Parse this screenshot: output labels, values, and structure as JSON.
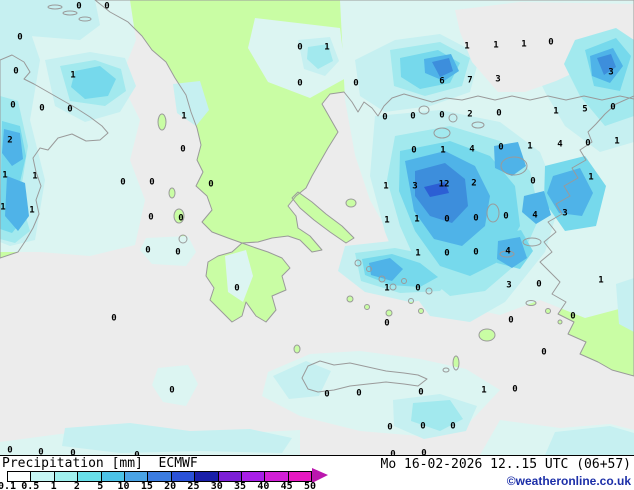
{
  "legend": {
    "title": "Precipitation",
    "unit": "[mm]",
    "model": "ECMWF",
    "ticks": [
      "0.1",
      "0.5",
      "1",
      "2",
      "5",
      "10",
      "15",
      "20",
      "25",
      "30",
      "35",
      "40",
      "45",
      "50"
    ],
    "colors": [
      "#fcfffe",
      "#c6f6f4",
      "#9ff0ee",
      "#68dfe9",
      "#4cc3e7",
      "#4aa3e5",
      "#3b7ce1",
      "#2b52d8",
      "#1a1fa9",
      "#7c1fd6",
      "#a81fe8",
      "#d21fd6",
      "#e619c2"
    ],
    "arrow_color": "#bb17ae"
  },
  "footer": {
    "datetime": "Mo 16-02-2026 12..15 UTC (06+57)",
    "copyright": "©weatheronline.co.uk"
  },
  "map": {
    "colors": {
      "sea": "#ececec",
      "land": "#c9fda4",
      "coast": "#9a9a9a",
      "copy": "#1c2fa8",
      "arrow": "#bb17ae",
      "b0": "#dcf5f2",
      "b1": "#c6f0f1",
      "b2": "#a2e9ee",
      "b3": "#76d9ec",
      "b4": "#4fb3e8",
      "b5": "#3d8edc",
      "b6": "#2c5fd4"
    },
    "values": [
      [
        79,
        5,
        "0"
      ],
      [
        107,
        5,
        "0"
      ],
      [
        20,
        36,
        "0"
      ],
      [
        300,
        46,
        "0"
      ],
      [
        327,
        46,
        "1"
      ],
      [
        467,
        45,
        "1"
      ],
      [
        496,
        44,
        "1"
      ],
      [
        524,
        43,
        "1"
      ],
      [
        551,
        41,
        "0"
      ],
      [
        16,
        70,
        "0"
      ],
      [
        73,
        74,
        "1"
      ],
      [
        300,
        82,
        "0"
      ],
      [
        356,
        82,
        "0"
      ],
      [
        442,
        80,
        "6"
      ],
      [
        470,
        79,
        "7"
      ],
      [
        498,
        78,
        "3"
      ],
      [
        611,
        71,
        "3"
      ],
      [
        13,
        104,
        "0"
      ],
      [
        42,
        107,
        "0"
      ],
      [
        70,
        108,
        "0"
      ],
      [
        184,
        115,
        "1"
      ],
      [
        385,
        116,
        "0"
      ],
      [
        413,
        115,
        "0"
      ],
      [
        442,
        114,
        "0"
      ],
      [
        470,
        113,
        "2"
      ],
      [
        499,
        112,
        "0"
      ],
      [
        556,
        110,
        "1"
      ],
      [
        585,
        108,
        "5"
      ],
      [
        613,
        106,
        "0"
      ],
      [
        10,
        139,
        "2"
      ],
      [
        183,
        148,
        "0"
      ],
      [
        414,
        149,
        "0"
      ],
      [
        443,
        149,
        "1"
      ],
      [
        472,
        148,
        "4"
      ],
      [
        501,
        146,
        "0"
      ],
      [
        530,
        145,
        "1"
      ],
      [
        560,
        143,
        "4"
      ],
      [
        588,
        142,
        "0"
      ],
      [
        617,
        140,
        "1"
      ],
      [
        5,
        174,
        "1"
      ],
      [
        35,
        175,
        "1"
      ],
      [
        123,
        181,
        "0"
      ],
      [
        152,
        181,
        "0"
      ],
      [
        211,
        183,
        "0"
      ],
      [
        386,
        185,
        "1"
      ],
      [
        415,
        185,
        "3"
      ],
      [
        444,
        183,
        "12"
      ],
      [
        474,
        182,
        "2"
      ],
      [
        533,
        180,
        "0"
      ],
      [
        591,
        176,
        "1"
      ],
      [
        3,
        206,
        "1"
      ],
      [
        32,
        209,
        "1"
      ],
      [
        151,
        216,
        "0"
      ],
      [
        181,
        217,
        "0"
      ],
      [
        387,
        219,
        "1"
      ],
      [
        417,
        218,
        "1"
      ],
      [
        447,
        218,
        "0"
      ],
      [
        476,
        217,
        "0"
      ],
      [
        506,
        215,
        "0"
      ],
      [
        535,
        214,
        "4"
      ],
      [
        565,
        212,
        "3"
      ],
      [
        148,
        249,
        "0"
      ],
      [
        178,
        251,
        "0"
      ],
      [
        418,
        252,
        "1"
      ],
      [
        447,
        252,
        "0"
      ],
      [
        476,
        251,
        "0"
      ],
      [
        508,
        250,
        "4"
      ],
      [
        237,
        287,
        "0"
      ],
      [
        387,
        287,
        "1"
      ],
      [
        418,
        287,
        "0"
      ],
      [
        509,
        284,
        "3"
      ],
      [
        539,
        283,
        "0"
      ],
      [
        601,
        279,
        "1"
      ],
      [
        114,
        317,
        "0"
      ],
      [
        387,
        322,
        "0"
      ],
      [
        511,
        319,
        "0"
      ],
      [
        573,
        315,
        "0"
      ],
      [
        544,
        351,
        "0"
      ],
      [
        172,
        389,
        "0"
      ],
      [
        327,
        393,
        "0"
      ],
      [
        359,
        392,
        "0"
      ],
      [
        421,
        391,
        "0"
      ],
      [
        484,
        389,
        "1"
      ],
      [
        515,
        388,
        "0"
      ],
      [
        390,
        426,
        "0"
      ],
      [
        423,
        425,
        "0"
      ],
      [
        453,
        425,
        "0"
      ],
      [
        10,
        449,
        "0"
      ],
      [
        41,
        451,
        "0"
      ],
      [
        73,
        452,
        "0"
      ],
      [
        137,
        454,
        "0"
      ],
      [
        393,
        453,
        "0"
      ],
      [
        424,
        452,
        "0"
      ]
    ]
  }
}
